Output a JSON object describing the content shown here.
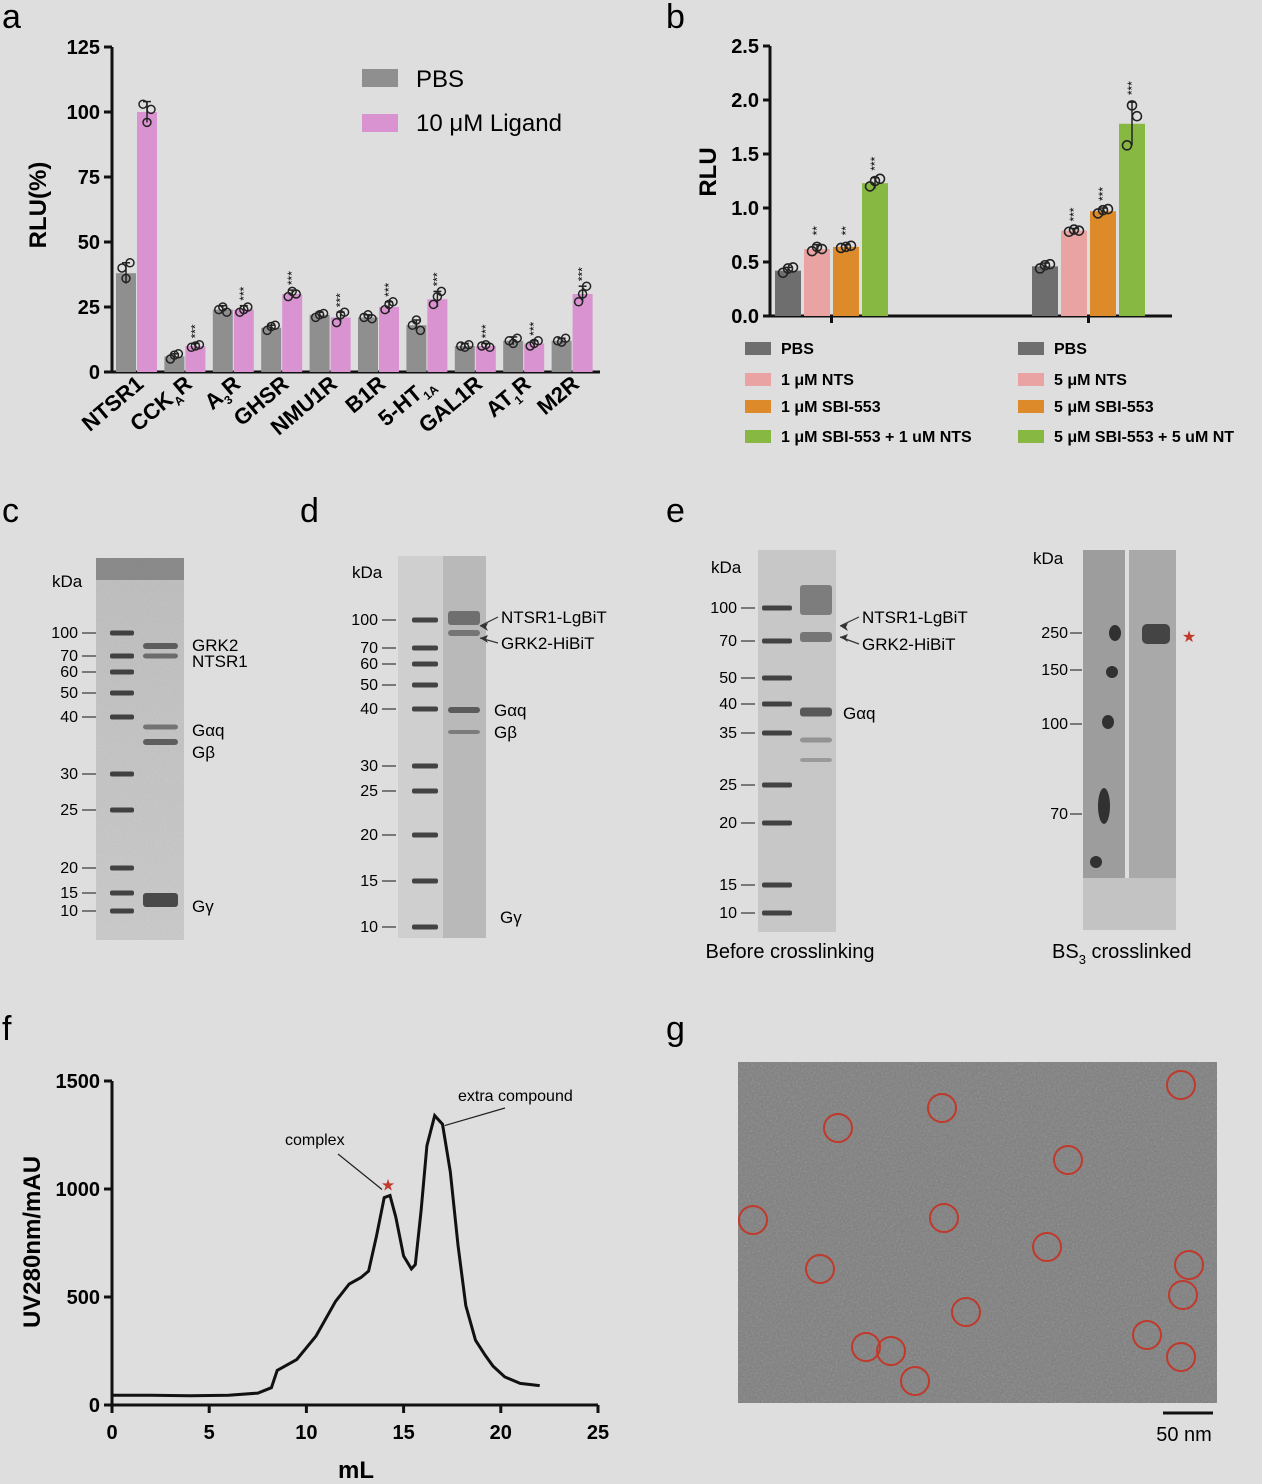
{
  "panels": {
    "a": "a",
    "b": "b",
    "c": "c",
    "d": "d",
    "e": "e",
    "f": "f",
    "g": "g"
  },
  "chart_data": [
    {
      "id": "a",
      "type": "bar",
      "ylabel": "RLU(%)",
      "ylim": [
        0,
        125
      ],
      "yticks": [
        "0",
        "25",
        "50",
        "75",
        "100",
        "125"
      ],
      "categories": [
        "NTSR1",
        "CCKAR",
        "A3R",
        "GHSR",
        "NMU1R",
        "B1R",
        "5-HT1A",
        "GAL1R",
        "AT1R",
        "M2R"
      ],
      "category_labels": [
        {
          "main": "NTSR1",
          "sub": "",
          "tail": ""
        },
        {
          "main": "CCK",
          "sub": "A",
          "tail": "R"
        },
        {
          "main": "A",
          "sub": "3",
          "tail": "R"
        },
        {
          "main": "GHSR",
          "sub": "",
          "tail": ""
        },
        {
          "main": "NMU1R",
          "sub": "",
          "tail": ""
        },
        {
          "main": "B1R",
          "sub": "",
          "tail": ""
        },
        {
          "main": "5-HT",
          "sub": "1A",
          "tail": ""
        },
        {
          "main": "GAL1R",
          "sub": "",
          "tail": ""
        },
        {
          "main": "AT",
          "sub": "1",
          "tail": "R"
        },
        {
          "main": "M2R",
          "sub": "",
          "tail": ""
        }
      ],
      "legend_position": "top-right",
      "series": [
        {
          "name": "PBS",
          "color": "#8f8f8f",
          "values": [
            38,
            6,
            24,
            17,
            22,
            21,
            18,
            10,
            12,
            12
          ],
          "errors": [
            4,
            1,
            1.5,
            1,
            1,
            1,
            2,
            1,
            1.5,
            1
          ],
          "points": [
            [
              40,
              36,
              42
            ],
            [
              5,
              6.5,
              7
            ],
            [
              24,
              25,
              23
            ],
            [
              16,
              17.5,
              18
            ],
            [
              21,
              22,
              22.5
            ],
            [
              21,
              22,
              20.5
            ],
            [
              18,
              20,
              16
            ],
            [
              10,
              9.5,
              10.5
            ],
            [
              12,
              11,
              13
            ],
            [
              12,
              11.5,
              13
            ]
          ],
          "sig": [
            "",
            "",
            "",
            "",
            "",
            "",
            "",
            "",
            "",
            ""
          ]
        },
        {
          "name": "10 μM Ligand",
          "color": "#d993d0",
          "values": [
            100,
            10,
            24,
            30,
            21,
            25,
            28,
            10,
            11,
            30
          ],
          "errors": [
            4,
            1,
            1.5,
            1.5,
            2,
            2,
            3,
            1,
            1,
            3
          ],
          "points": [
            [
              103,
              96,
              101
            ],
            [
              9.5,
              10,
              10.5
            ],
            [
              23,
              24,
              25
            ],
            [
              29,
              31,
              30
            ],
            [
              19,
              22,
              23
            ],
            [
              24,
              26,
              27
            ],
            [
              26,
              29,
              31
            ],
            [
              10,
              10.5,
              9.5
            ],
            [
              10,
              11,
              12
            ],
            [
              27,
              30,
              33
            ]
          ],
          "sig": [
            "",
            "***",
            "***",
            "***",
            "***",
            "***",
            "***",
            "***",
            "***",
            "***"
          ]
        }
      ]
    },
    {
      "id": "b",
      "type": "bar",
      "ylabel": "RLU",
      "ylim": [
        0,
        2.5
      ],
      "yticks": [
        "0.0",
        "0.5",
        "1.0",
        "1.5",
        "2.0",
        "2.5"
      ],
      "groups": [
        {
          "values": [
            0.42,
            0.62,
            0.64,
            1.23
          ],
          "errors": [
            0.03,
            0.04,
            0.02,
            0.05
          ],
          "points": [
            [
              0.4,
              0.44,
              0.45
            ],
            [
              0.6,
              0.64,
              0.62
            ],
            [
              0.63,
              0.64,
              0.65
            ],
            [
              1.2,
              1.25,
              1.27
            ]
          ],
          "sig": [
            "",
            "**",
            "**",
            "***"
          ]
        },
        {
          "values": [
            0.46,
            0.79,
            0.97,
            1.78
          ],
          "errors": [
            0.03,
            0.02,
            0.03,
            0.2
          ],
          "points": [
            [
              0.44,
              0.47,
              0.48
            ],
            [
              0.78,
              0.8,
              0.79
            ],
            [
              0.95,
              0.98,
              0.99
            ],
            [
              1.58,
              1.95,
              1.85
            ]
          ],
          "sig": [
            "",
            "***",
            "***",
            "***"
          ]
        }
      ],
      "colors": [
        "#6e6e6e",
        "#eaa3a3",
        "#dd8a2a",
        "#87b842"
      ],
      "legend_left": [
        "PBS",
        "1 μM NTS",
        "1 μM SBI-553",
        "1 μM SBI-553 + 1 uM NTS"
      ],
      "legend_right": [
        "PBS",
        "5 μM NTS",
        "5 μM SBI-553",
        "5 μM SBI-553 + 5 uM NT"
      ],
      "legend_position": "bottom"
    },
    {
      "id": "f",
      "type": "line",
      "xlabel": "mL",
      "ylabel": "UV280nm/mAU",
      "xlim": [
        0,
        25
      ],
      "ylim": [
        0,
        1500
      ],
      "xticks": [
        "0",
        "5",
        "10",
        "15",
        "20",
        "25"
      ],
      "yticks": [
        "0",
        "500",
        "1000",
        "1500"
      ],
      "x": [
        0,
        2,
        4,
        6,
        7.5,
        8.2,
        8.5,
        9.5,
        10.5,
        11.5,
        12.2,
        12.8,
        13.2,
        13.6,
        14.0,
        14.3,
        14.6,
        15.0,
        15.4,
        15.6,
        15.9,
        16.2,
        16.6,
        17.0,
        17.4,
        17.8,
        18.2,
        18.7,
        19.2,
        19.6,
        20.2,
        21.0,
        22.0
      ],
      "y": [
        45,
        45,
        43,
        45,
        55,
        80,
        160,
        210,
        320,
        480,
        560,
        590,
        620,
        780,
        960,
        970,
        870,
        690,
        630,
        650,
        900,
        1200,
        1340,
        1300,
        1080,
        740,
        460,
        300,
        230,
        180,
        130,
        100,
        90
      ],
      "annotations": [
        {
          "text": "complex",
          "x": 14.2,
          "y": 970
        },
        {
          "text": "extra compound",
          "x": 16.6,
          "y": 1340
        }
      ],
      "star_at": {
        "x": 14.2,
        "y": 1030
      }
    }
  ],
  "gel_c": {
    "unit": "kDa",
    "markers": [
      "100",
      "70",
      "60",
      "50",
      "40",
      "30",
      "25",
      "20",
      "15",
      "10"
    ],
    "bands": [
      "GRK2",
      "NTSR1",
      "Gαq",
      "Gβ",
      "Gγ"
    ]
  },
  "gel_d": {
    "unit": "kDa",
    "markers": [
      "100",
      "70",
      "60",
      "50",
      "40",
      "30",
      "25",
      "20",
      "15",
      "10"
    ],
    "bands": [
      "NTSR1-LgBiT",
      "GRK2-HiBiT",
      "Gαq",
      "Gβ",
      "Gγ"
    ]
  },
  "gel_e1": {
    "unit": "kDa",
    "markers": [
      "100",
      "70",
      "50",
      "40",
      "35",
      "25",
      "20",
      "15",
      "10"
    ],
    "bands": [
      "NTSR1-LgBiT",
      "GRK2-HiBiT",
      "Gαq"
    ],
    "caption": "Before crosslinking"
  },
  "gel_e2": {
    "unit": "kDa",
    "markers": [
      "250",
      "150",
      "100",
      "70"
    ],
    "caption_main": "BS",
    "caption_sub": "3",
    "caption_tail": " crosslinked"
  },
  "micrograph": {
    "scale_bar": "50 nm",
    "particle_circle_color": "#c0392b"
  }
}
